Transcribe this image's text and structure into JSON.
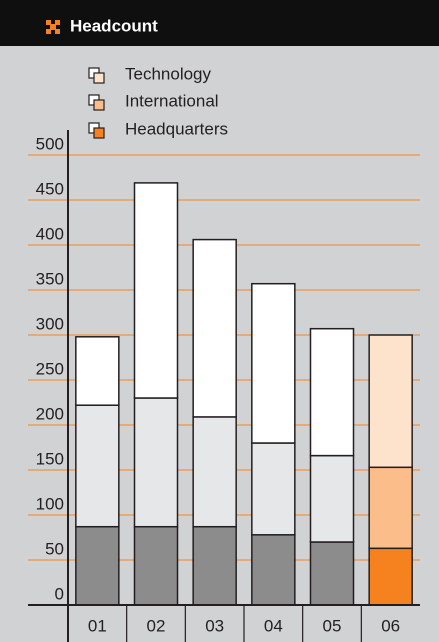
{
  "chart_data": {
    "type": "stacked_bar",
    "title": "Headcount",
    "categories": [
      "01",
      "02",
      "03",
      "04",
      "05",
      "06"
    ],
    "series": [
      {
        "name": "Headquarters",
        "color": "#8c8c8c",
        "highlight_color": "#f5821f",
        "values": [
          87,
          87,
          87,
          78,
          70,
          63
        ]
      },
      {
        "name": "International",
        "color": "#e6e7e9",
        "highlight_color": "#fbbd8a",
        "values": [
          135,
          143,
          122,
          102,
          96,
          90
        ]
      },
      {
        "name": "Technology",
        "color": "#ffffff",
        "highlight_color": "#fde3cc",
        "values": [
          76,
          239,
          197,
          177,
          141,
          147
        ]
      }
    ],
    "highlight_index": 5,
    "ylim": [
      0,
      500
    ],
    "yticks": [
      0,
      50,
      100,
      150,
      200,
      250,
      300,
      350,
      400,
      450,
      500
    ],
    "grid": true,
    "grid_color": "#f5821f"
  }
}
